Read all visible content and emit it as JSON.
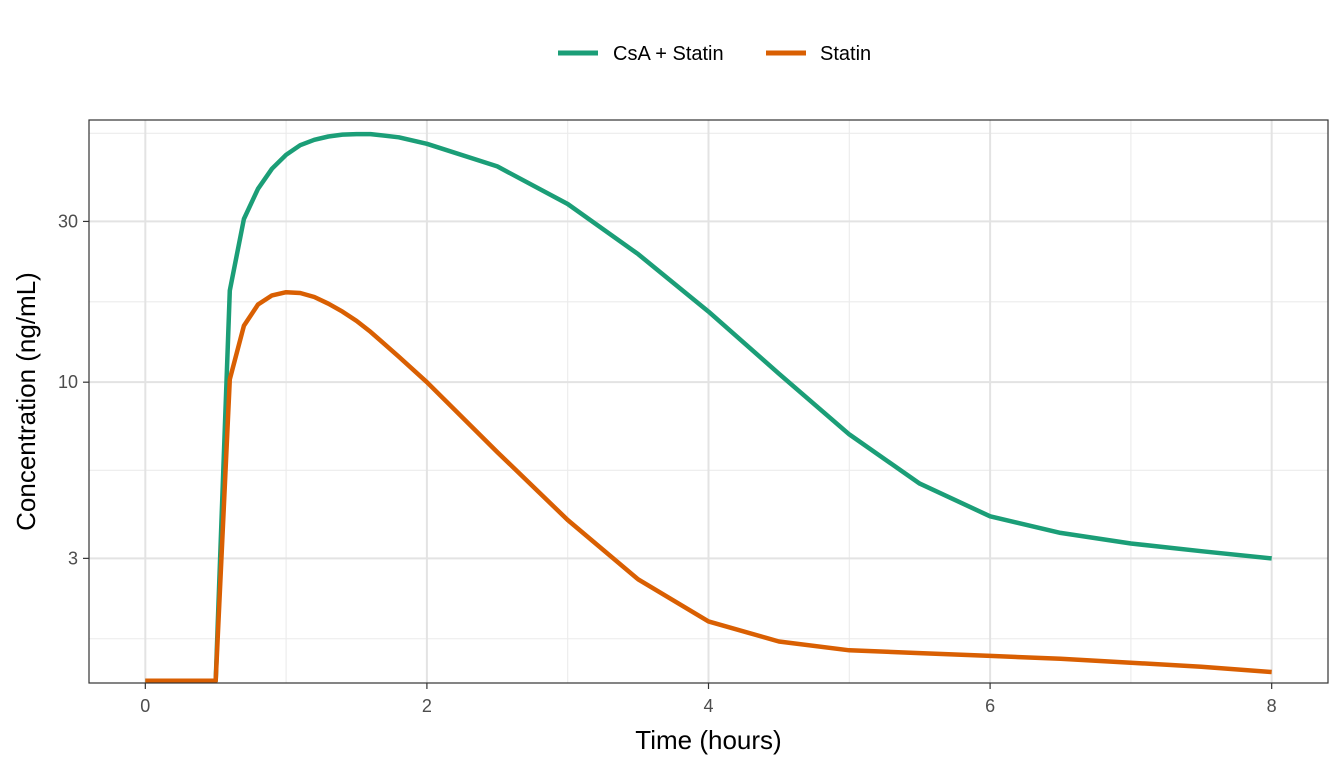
{
  "chart_data": {
    "type": "line",
    "xlabel": "Time (hours)",
    "ylabel": "Concentration (ng/mL)",
    "xlim": [
      -0.4,
      8.4
    ],
    "ylim": [
      1.28,
      60
    ],
    "y_scale": "log",
    "x_ticks": [
      0,
      2,
      4,
      6,
      8
    ],
    "x_tick_labels": [
      "0",
      "2",
      "4",
      "6",
      "8"
    ],
    "y_ticks": [
      3,
      10,
      30
    ],
    "y_tick_labels": [
      "3",
      "10",
      "30"
    ],
    "y_minor_ticks": [
      1.732,
      5.477,
      17.32,
      54.77
    ],
    "x_minor_ticks": [
      1,
      3,
      5,
      7
    ],
    "grid": true,
    "legend_position": "top",
    "series": [
      {
        "name": "CsA + Statin",
        "color": "#1b9e77",
        "x": [
          0,
          0.5,
          0.6,
          0.7,
          0.8,
          0.9,
          1.0,
          1.1,
          1.2,
          1.3,
          1.4,
          1.5,
          1.6,
          1.8,
          2.0,
          2.5,
          3.0,
          3.5,
          4.0,
          4.5,
          5.0,
          5.5,
          6.0,
          6.5,
          7.0,
          7.5,
          8.0
        ],
        "y": [
          1.3,
          1.3,
          18.7,
          30.5,
          37.5,
          43.0,
          47.3,
          50.5,
          52.4,
          53.6,
          54.3,
          54.5,
          54.5,
          53.3,
          51.0,
          43.7,
          33.8,
          24.0,
          16.2,
          10.6,
          7.0,
          5.0,
          4.0,
          3.57,
          3.32,
          3.15,
          3.0
        ]
      },
      {
        "name": "Statin",
        "color": "#d95f02",
        "x": [
          0,
          0.5,
          0.6,
          0.7,
          0.8,
          0.9,
          1.0,
          1.1,
          1.2,
          1.3,
          1.4,
          1.5,
          1.6,
          1.8,
          2.0,
          2.5,
          3.0,
          3.5,
          4.0,
          4.5,
          5.0,
          5.5,
          6.0,
          6.5,
          7.0,
          7.5,
          8.0
        ],
        "y": [
          1.3,
          1.3,
          10.2,
          14.7,
          17.0,
          18.1,
          18.5,
          18.4,
          17.9,
          17.1,
          16.2,
          15.2,
          14.1,
          11.9,
          10.0,
          6.2,
          3.9,
          2.6,
          1.95,
          1.7,
          1.6,
          1.57,
          1.54,
          1.51,
          1.47,
          1.43,
          1.38
        ]
      }
    ]
  }
}
